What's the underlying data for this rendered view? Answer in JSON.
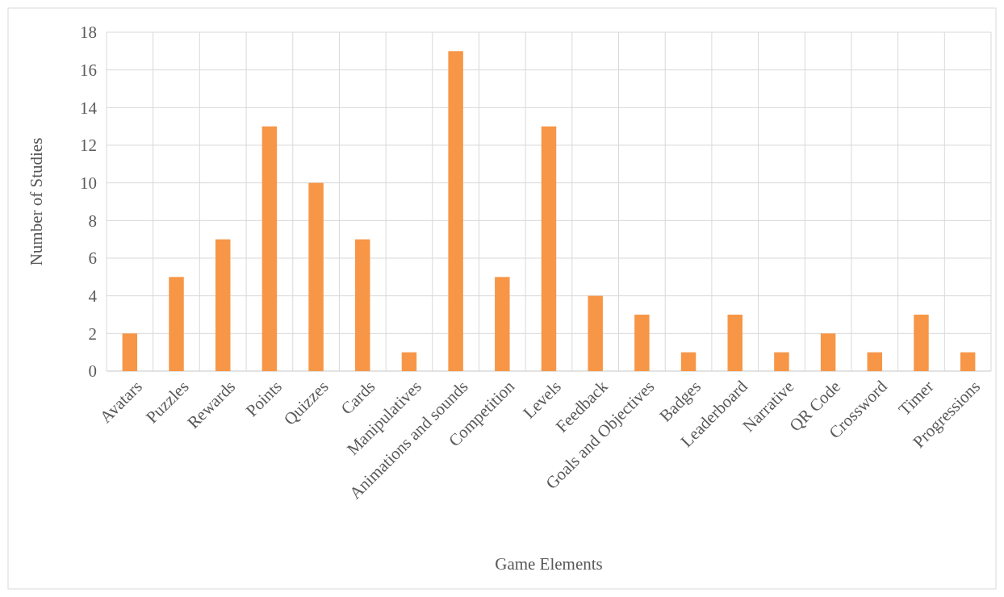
{
  "chart_data": {
    "type": "bar",
    "xlabel": "Game Elements",
    "ylabel": "Number of Studies",
    "categories": [
      "Avatars",
      "Puzzles",
      "Rewards",
      "Points",
      "Quizzes",
      "Cards",
      "Manipulatives",
      "Animations and sounds",
      "Competition",
      "Levels",
      "Feedback",
      "Goals and Objectives",
      "Badges",
      "Leaderboard",
      "Narrative",
      "QR Code",
      "Crossword",
      "Timer",
      "Progressions"
    ],
    "values": [
      2,
      5,
      7,
      13,
      10,
      7,
      1,
      17,
      5,
      13,
      4,
      3,
      1,
      3,
      1,
      2,
      1,
      3,
      1
    ],
    "color": "#f79646",
    "ylim": [
      0,
      18
    ],
    "yticks": [
      0,
      2,
      4,
      6,
      8,
      10,
      12,
      14,
      16,
      18
    ],
    "grid": true
  }
}
